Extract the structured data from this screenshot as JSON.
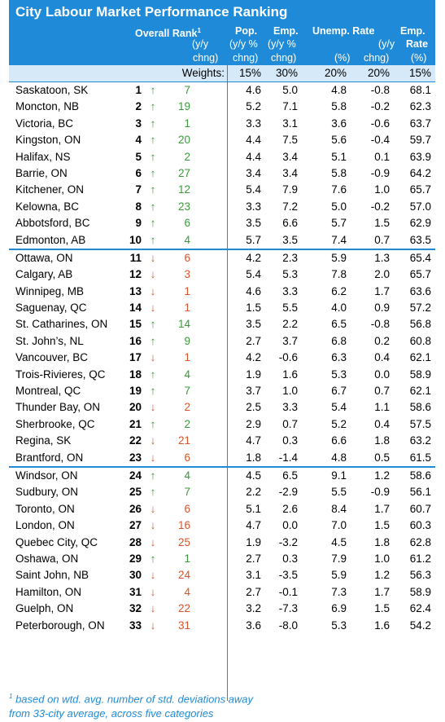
{
  "title": "City Labour Market Performance Ranking",
  "headers": {
    "overall_rank": "Overall Rank",
    "overall_rank_sup": "1",
    "pop": "Pop.",
    "emp": "Emp.",
    "unemp_rate": "Unemp. Rate",
    "emp_rate": "Emp.",
    "row2": {
      "yy1": "(y/y",
      "yy_pct1": "(y/y %",
      "yy_pct2": "(y/y %",
      "yy2": "(y/y",
      "rate": "Rate"
    },
    "row3": {
      "chng1": "chng)",
      "chng2": "chng)",
      "chng3": "chng)",
      "pct1": "(%)",
      "chng4": "chng)",
      "pct2": "(%)"
    }
  },
  "weights": {
    "label": "Weights:",
    "pop": "15%",
    "emp": "30%",
    "unemp": "20%",
    "unemp_chg": "20%",
    "emp_rate": "15%"
  },
  "rows": [
    {
      "city": "Saskatoon, SK",
      "rank": "1",
      "dir": "up",
      "chg": "7",
      "pop": "4.6",
      "emp": "5.0",
      "unemp": "4.8",
      "unemp_chg": "-0.8",
      "emp_rate": "68.1"
    },
    {
      "city": "Moncton, NB",
      "rank": "2",
      "dir": "up",
      "chg": "19",
      "pop": "5.2",
      "emp": "7.1",
      "unemp": "5.8",
      "unemp_chg": "-0.2",
      "emp_rate": "62.3"
    },
    {
      "city": "Victoria, BC",
      "rank": "3",
      "dir": "up",
      "chg": "1",
      "pop": "3.3",
      "emp": "3.1",
      "unemp": "3.6",
      "unemp_chg": "-0.6",
      "emp_rate": "63.7"
    },
    {
      "city": "Kingston, ON",
      "rank": "4",
      "dir": "up",
      "chg": "20",
      "pop": "4.4",
      "emp": "7.5",
      "unemp": "5.6",
      "unemp_chg": "-0.4",
      "emp_rate": "59.7"
    },
    {
      "city": "Halifax, NS",
      "rank": "5",
      "dir": "up",
      "chg": "2",
      "pop": "4.4",
      "emp": "3.4",
      "unemp": "5.1",
      "unemp_chg": "0.1",
      "emp_rate": "63.9"
    },
    {
      "city": "Barrie, ON",
      "rank": "6",
      "dir": "up",
      "chg": "27",
      "pop": "3.4",
      "emp": "3.4",
      "unemp": "5.8",
      "unemp_chg": "-0.9",
      "emp_rate": "64.2"
    },
    {
      "city": "Kitchener, ON",
      "rank": "7",
      "dir": "up",
      "chg": "12",
      "pop": "5.4",
      "emp": "7.9",
      "unemp": "7.6",
      "unemp_chg": "1.0",
      "emp_rate": "65.7"
    },
    {
      "city": "Kelowna, BC",
      "rank": "8",
      "dir": "up",
      "chg": "23",
      "pop": "3.3",
      "emp": "7.2",
      "unemp": "5.0",
      "unemp_chg": "-0.2",
      "emp_rate": "57.0"
    },
    {
      "city": "Abbotsford, BC",
      "rank": "9",
      "dir": "up",
      "chg": "6",
      "pop": "3.5",
      "emp": "6.6",
      "unemp": "5.7",
      "unemp_chg": "1.5",
      "emp_rate": "62.9"
    },
    {
      "city": "Edmonton, AB",
      "rank": "10",
      "dir": "up",
      "chg": "4",
      "pop": "5.7",
      "emp": "3.5",
      "unemp": "7.4",
      "unemp_chg": "0.7",
      "emp_rate": "63.5"
    },
    {
      "city": "Ottawa, ON",
      "rank": "11",
      "dir": "down",
      "chg": "6",
      "pop": "4.2",
      "emp": "2.3",
      "unemp": "5.9",
      "unemp_chg": "1.3",
      "emp_rate": "65.4"
    },
    {
      "city": "Calgary, AB",
      "rank": "12",
      "dir": "down",
      "chg": "3",
      "pop": "5.4",
      "emp": "5.3",
      "unemp": "7.8",
      "unemp_chg": "2.0",
      "emp_rate": "65.7"
    },
    {
      "city": "Winnipeg, MB",
      "rank": "13",
      "dir": "down",
      "chg": "1",
      "pop": "4.6",
      "emp": "3.3",
      "unemp": "6.2",
      "unemp_chg": "1.7",
      "emp_rate": "63.6"
    },
    {
      "city": "Saguenay, QC",
      "rank": "14",
      "dir": "down",
      "chg": "1",
      "pop": "1.5",
      "emp": "5.5",
      "unemp": "4.0",
      "unemp_chg": "0.9",
      "emp_rate": "57.2"
    },
    {
      "city": "St. Catharines, ON",
      "rank": "15",
      "dir": "up",
      "chg": "14",
      "pop": "3.5",
      "emp": "2.2",
      "unemp": "6.5",
      "unemp_chg": "-0.8",
      "emp_rate": "56.8"
    },
    {
      "city": "St. John’s, NL",
      "rank": "16",
      "dir": "up",
      "chg": "9",
      "pop": "2.7",
      "emp": "3.7",
      "unemp": "6.8",
      "unemp_chg": "0.2",
      "emp_rate": "60.8"
    },
    {
      "city": "Vancouver, BC",
      "rank": "17",
      "dir": "down",
      "chg": "1",
      "pop": "4.2",
      "emp": "-0.6",
      "unemp": "6.3",
      "unemp_chg": "0.4",
      "emp_rate": "62.1"
    },
    {
      "city": "Trois-Rivieres, QC",
      "rank": "18",
      "dir": "up",
      "chg": "4",
      "pop": "1.9",
      "emp": "1.6",
      "unemp": "5.3",
      "unemp_chg": "0.0",
      "emp_rate": "58.9"
    },
    {
      "city": "Montreal, QC",
      "rank": "19",
      "dir": "up",
      "chg": "7",
      "pop": "3.7",
      "emp": "1.0",
      "unemp": "6.7",
      "unemp_chg": "0.7",
      "emp_rate": "62.1"
    },
    {
      "city": "Thunder Bay, ON",
      "rank": "20",
      "dir": "down",
      "chg": "2",
      "pop": "2.5",
      "emp": "3.3",
      "unemp": "5.4",
      "unemp_chg": "1.1",
      "emp_rate": "58.6"
    },
    {
      "city": "Sherbrooke, QC",
      "rank": "21",
      "dir": "up",
      "chg": "2",
      "pop": "2.9",
      "emp": "0.7",
      "unemp": "5.2",
      "unemp_chg": "0.4",
      "emp_rate": "57.5"
    },
    {
      "city": "Regina, SK",
      "rank": "22",
      "dir": "down",
      "chg": "21",
      "pop": "4.7",
      "emp": "0.3",
      "unemp": "6.6",
      "unemp_chg": "1.8",
      "emp_rate": "63.2"
    },
    {
      "city": "Brantford, ON",
      "rank": "23",
      "dir": "down",
      "chg": "6",
      "pop": "1.8",
      "emp": "-1.4",
      "unemp": "4.8",
      "unemp_chg": "0.5",
      "emp_rate": "61.5"
    },
    {
      "city": "Windsor, ON",
      "rank": "24",
      "dir": "up",
      "chg": "4",
      "pop": "4.5",
      "emp": "6.5",
      "unemp": "9.1",
      "unemp_chg": "1.2",
      "emp_rate": "58.6"
    },
    {
      "city": "Sudbury, ON",
      "rank": "25",
      "dir": "up",
      "chg": "7",
      "pop": "2.2",
      "emp": "-2.9",
      "unemp": "5.5",
      "unemp_chg": "-0.9",
      "emp_rate": "56.1"
    },
    {
      "city": "Toronto, ON",
      "rank": "26",
      "dir": "down",
      "chg": "6",
      "pop": "5.1",
      "emp": "2.6",
      "unemp": "8.4",
      "unemp_chg": "1.7",
      "emp_rate": "60.7"
    },
    {
      "city": "London, ON",
      "rank": "27",
      "dir": "down",
      "chg": "16",
      "pop": "4.7",
      "emp": "0.0",
      "unemp": "7.0",
      "unemp_chg": "1.5",
      "emp_rate": "60.3"
    },
    {
      "city": "Quebec City, QC",
      "rank": "28",
      "dir": "down",
      "chg": "25",
      "pop": "1.9",
      "emp": "-3.2",
      "unemp": "4.5",
      "unemp_chg": "1.8",
      "emp_rate": "62.8"
    },
    {
      "city": "Oshawa, ON",
      "rank": "29",
      "dir": "up",
      "chg": "1",
      "pop": "2.7",
      "emp": "0.3",
      "unemp": "7.9",
      "unemp_chg": "1.0",
      "emp_rate": "61.2"
    },
    {
      "city": "Saint John, NB",
      "rank": "30",
      "dir": "down",
      "chg": "24",
      "pop": "3.1",
      "emp": "-3.5",
      "unemp": "5.9",
      "unemp_chg": "1.2",
      "emp_rate": "56.3"
    },
    {
      "city": "Hamilton, ON",
      "rank": "31",
      "dir": "down",
      "chg": "4",
      "pop": "2.7",
      "emp": "-0.1",
      "unemp": "7.3",
      "unemp_chg": "1.7",
      "emp_rate": "58.9"
    },
    {
      "city": "Guelph, ON",
      "rank": "32",
      "dir": "down",
      "chg": "22",
      "pop": "3.2",
      "emp": "-7.3",
      "unemp": "6.9",
      "unemp_chg": "1.5",
      "emp_rate": "62.4"
    },
    {
      "city": "Peterborough, ON",
      "rank": "33",
      "dir": "down",
      "chg": "31",
      "pop": "3.6",
      "emp": "-8.0",
      "unemp": "5.3",
      "unemp_chg": "1.6",
      "emp_rate": "54.2"
    }
  ],
  "arrows": {
    "up": "↑",
    "down": "↓"
  },
  "colors": {
    "header": "#1f8bd8",
    "weights_bg": "#d6e9f8",
    "up": "#3a9a3a",
    "down": "#d9532b"
  },
  "footnote": {
    "sup": "1",
    "line1": "based on wtd. avg. number of std. deviations away",
    "line2": "from 33-city average, across five categories"
  }
}
